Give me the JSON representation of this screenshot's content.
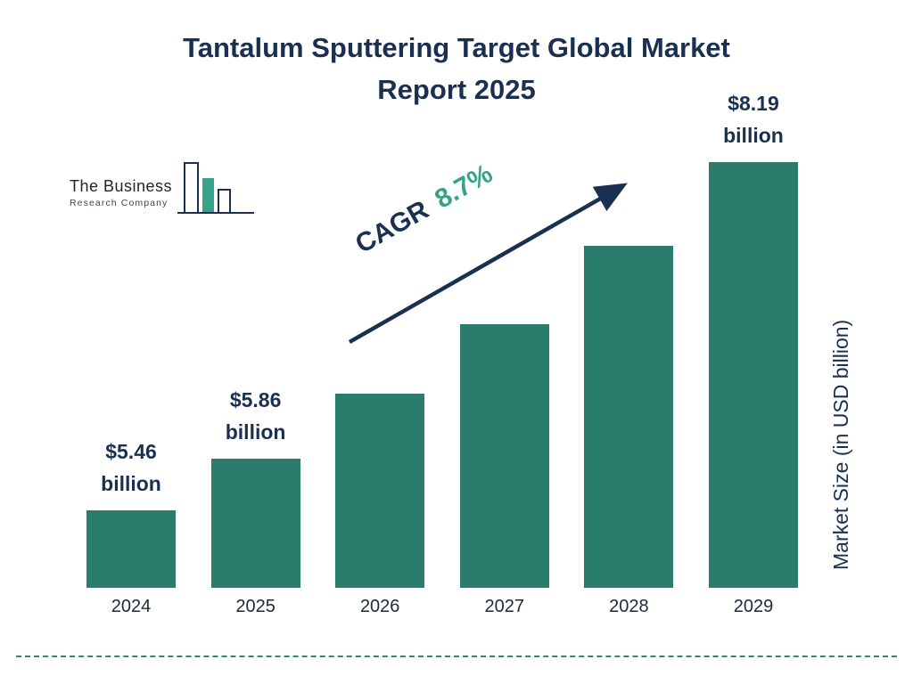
{
  "page": {
    "background": "#ffffff"
  },
  "title": {
    "line1": "Tantalum Sputtering Target Global Market",
    "line2": "Report 2025"
  },
  "logo": {
    "name": "The Business",
    "subname": "Research Company"
  },
  "cagr": {
    "label": "CAGR",
    "value": "8.7%"
  },
  "y_axis_label": "Market Size (in USD billion)",
  "colors": {
    "navy": "#1b3050",
    "bar_teal": "#2a7c6c",
    "accent_green": "#38a288",
    "dashed_line": "#2f8577"
  },
  "chart_data": {
    "type": "bar",
    "title": "Tantalum Sputtering Target Global Market Report 2025",
    "categories": [
      "2024",
      "2025",
      "2026",
      "2027",
      "2028",
      "2029"
    ],
    "values": [
      5.46,
      5.86,
      6.37,
      6.92,
      7.53,
      8.19
    ],
    "bar_labels": [
      {
        "index": 0,
        "amount": "$5.46",
        "unit": "billion"
      },
      {
        "index": 1,
        "amount": "$5.86",
        "unit": "billion"
      },
      {
        "index": 5,
        "amount": "$8.19",
        "unit": "billion"
      }
    ],
    "xlabel": "",
    "ylabel": "Market Size (in USD billion)",
    "ylim": [
      4.85,
      8.6
    ],
    "grid": false,
    "legend": "none",
    "bar_color": "#2a7c6c",
    "annotation": "CAGR 8.7%"
  }
}
